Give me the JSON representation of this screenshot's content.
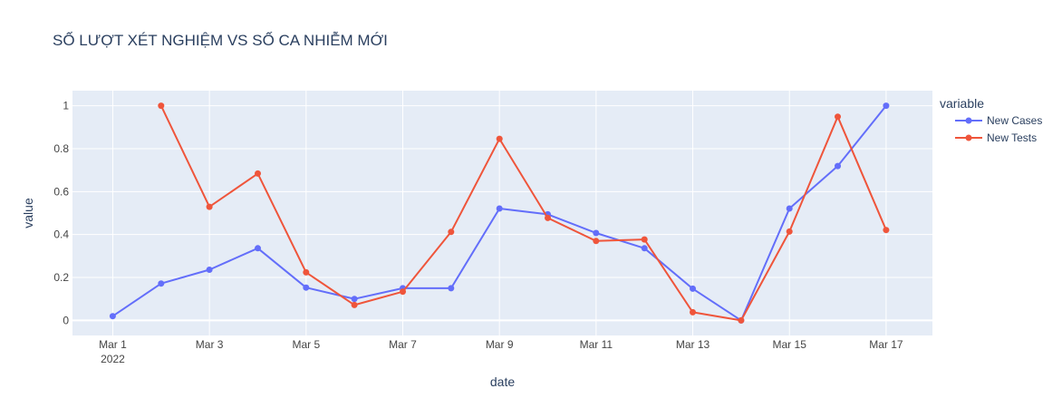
{
  "chart_data": {
    "type": "line",
    "title": "SỐ LƯỢT XÉT NGHIỆM VS SỐ CA NHIỄM MỚI",
    "xlabel": "date",
    "ylabel": "value",
    "x": [
      "2022-03-01",
      "2022-03-02",
      "2022-03-03",
      "2022-03-04",
      "2022-03-05",
      "2022-03-06",
      "2022-03-07",
      "2022-03-08",
      "2022-03-09",
      "2022-03-10",
      "2022-03-11",
      "2022-03-12",
      "2022-03-13",
      "2022-03-14",
      "2022-03-15",
      "2022-03-16",
      "2022-03-17"
    ],
    "xlim": [
      "2022-02-28T04:00",
      "2022-03-17T23:00"
    ],
    "ylim": [
      -0.07,
      1.07
    ],
    "x_ticks": [
      {
        "x": "2022-03-01",
        "label": "Mar 1",
        "sublabel": "2022"
      },
      {
        "x": "2022-03-03",
        "label": "Mar 3"
      },
      {
        "x": "2022-03-05",
        "label": "Mar 5"
      },
      {
        "x": "2022-03-07",
        "label": "Mar 7"
      },
      {
        "x": "2022-03-09",
        "label": "Mar 9"
      },
      {
        "x": "2022-03-11",
        "label": "Mar 11"
      },
      {
        "x": "2022-03-13",
        "label": "Mar 13"
      },
      {
        "x": "2022-03-15",
        "label": "Mar 15"
      },
      {
        "x": "2022-03-17",
        "label": "Mar 17"
      }
    ],
    "y_ticks": [
      {
        "y": 0,
        "label": "0"
      },
      {
        "y": 0.2,
        "label": "0.2"
      },
      {
        "y": 0.4,
        "label": "0.4"
      },
      {
        "y": 0.6,
        "label": "0.6"
      },
      {
        "y": 0.8,
        "label": "0.8"
      },
      {
        "y": 1,
        "label": "1"
      }
    ],
    "grid": true,
    "legend": {
      "title": "variable",
      "position": "right"
    },
    "series": [
      {
        "name": "New Cases",
        "color": "#636efa",
        "values": [
          0.02,
          0.172,
          0.236,
          0.336,
          0.153,
          0.1,
          0.15,
          0.15,
          0.521,
          0.494,
          0.407,
          0.336,
          0.148,
          0.0,
          0.521,
          0.719,
          1.0
        ]
      },
      {
        "name": "New Tests",
        "color": "#ef553b",
        "values": [
          null,
          1.0,
          0.529,
          0.684,
          0.224,
          0.072,
          0.134,
          0.412,
          0.846,
          0.477,
          0.37,
          0.377,
          0.038,
          0.0,
          0.414,
          0.949,
          0.421
        ]
      }
    ],
    "colors": {
      "plot_background": "#e5ecf6",
      "grid": "#ffffff",
      "text": "#2a3f5f",
      "tick_text": "#444444"
    }
  }
}
